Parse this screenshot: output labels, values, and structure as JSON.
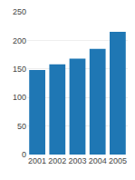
{
  "chart_data": {
    "type": "bar",
    "categories": [
      "2001",
      "2002",
      "2003",
      "2004",
      "2005"
    ],
    "values": [
      148,
      158,
      168,
      185,
      215
    ],
    "ylim": [
      0,
      250
    ],
    "yticks": [
      0,
      50,
      100,
      150,
      200,
      250
    ],
    "grid": true
  }
}
